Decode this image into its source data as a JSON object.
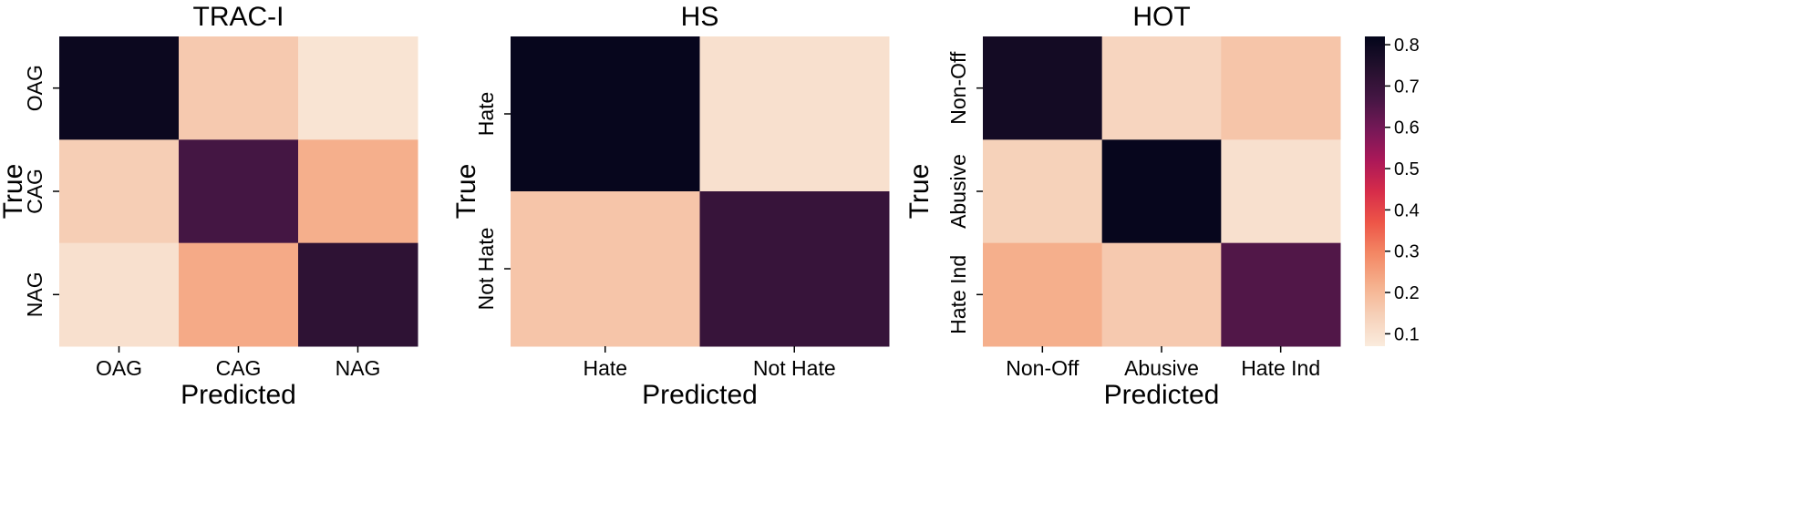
{
  "chart_data": [
    {
      "type": "heatmap",
      "title": "TRAC-I",
      "xlabel": "Predicted",
      "ylabel": "True",
      "x_categories": [
        "OAG",
        "CAG",
        "NAG"
      ],
      "y_categories": [
        "OAG",
        "CAG",
        "NAG"
      ],
      "values": [
        [
          0.8,
          0.16,
          0.09
        ],
        [
          0.15,
          0.67,
          0.22
        ],
        [
          0.1,
          0.23,
          0.72
        ]
      ]
    },
    {
      "type": "heatmap",
      "title": "HS",
      "xlabel": "Predicted",
      "ylabel": "True",
      "x_categories": [
        "Hate",
        "Not Hate"
      ],
      "y_categories": [
        "Hate",
        "Not Hate"
      ],
      "values": [
        [
          0.81,
          0.1
        ],
        [
          0.17,
          0.7
        ]
      ]
    },
    {
      "type": "heatmap",
      "title": "HOT",
      "xlabel": "Predicted",
      "ylabel": "True",
      "x_categories": [
        "Non-Off",
        "Abusive",
        "Hate Ind"
      ],
      "y_categories": [
        "Non-Off",
        "Abusive",
        "Hate Ind"
      ],
      "values": [
        [
          0.78,
          0.13,
          0.17
        ],
        [
          0.14,
          0.81,
          0.1
        ],
        [
          0.22,
          0.16,
          0.65
        ]
      ]
    }
  ],
  "colorbar": {
    "colormap": "rocket_r",
    "range": [
      0.07,
      0.82
    ],
    "ticks": [
      0.1,
      0.2,
      0.3,
      0.4,
      0.5,
      0.6,
      0.7,
      0.8
    ],
    "tick_labels": [
      "0.1",
      "0.2",
      "0.3",
      "0.4",
      "0.5",
      "0.6",
      "0.7",
      "0.8"
    ]
  }
}
